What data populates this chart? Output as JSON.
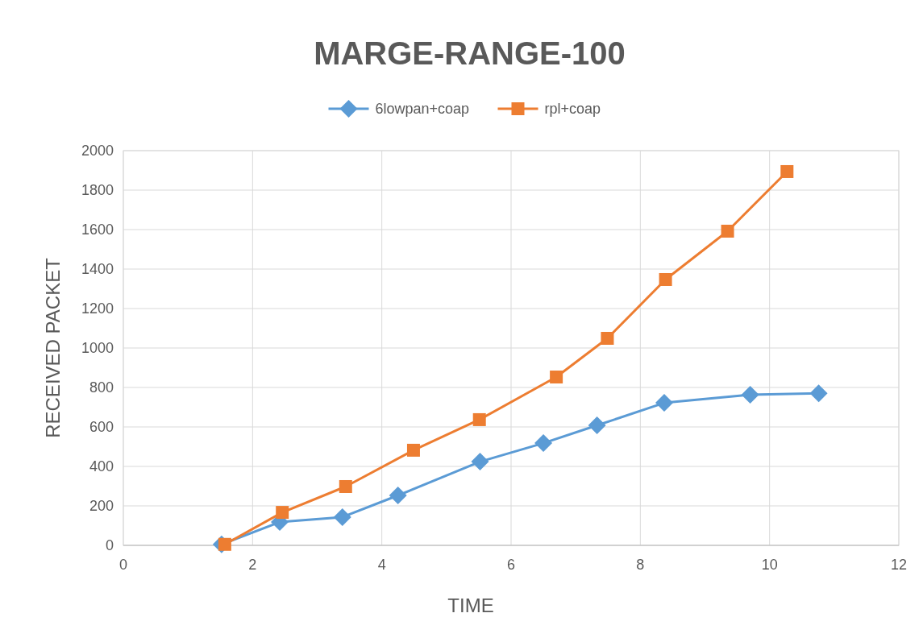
{
  "chart_data": {
    "type": "line",
    "title": "MARGE-RANGE-100",
    "xlabel": "TIME",
    "ylabel": "RECEIVED PACKET",
    "series": [
      {
        "name": "6lowpan+coap",
        "color": "#5b9bd5",
        "marker": "diamond",
        "x": [
          1.52,
          2.42,
          3.39,
          4.25,
          5.52,
          6.5,
          7.33,
          8.37,
          9.7,
          10.76
        ],
        "values": [
          5,
          118,
          143,
          253,
          424,
          518,
          608,
          722,
          763,
          770
        ]
      },
      {
        "name": "rpl+coap",
        "color": "#ed7d31",
        "marker": "square",
        "x": [
          1.57,
          2.46,
          3.44,
          4.49,
          5.51,
          6.7,
          7.49,
          8.39,
          9.35,
          10.27
        ],
        "values": [
          5,
          167,
          298,
          482,
          637,
          853,
          1049,
          1347,
          1592,
          1894
        ]
      }
    ],
    "xlim": [
      0,
      12
    ],
    "xticks": [
      0,
      2,
      4,
      6,
      8,
      10,
      12
    ],
    "ylim": [
      0,
      2000
    ],
    "yticks": [
      0,
      200,
      400,
      600,
      800,
      1000,
      1200,
      1400,
      1600,
      1800,
      2000
    ],
    "grid": true,
    "legend": "top",
    "line_style": "solid"
  }
}
